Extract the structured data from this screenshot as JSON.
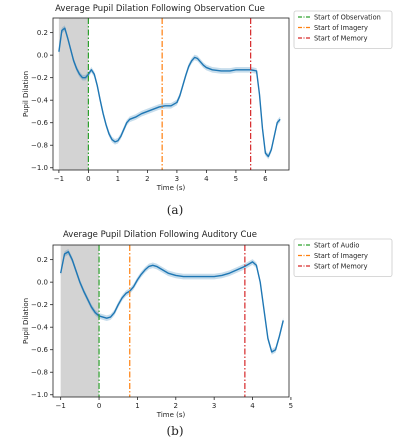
{
  "chart_data": [
    {
      "type": "line",
      "title": "Average Pupil Dilation Following Observation Cue",
      "xlabel": "Time (s)",
      "ylabel": "Pupil Dilation",
      "xlim": [
        -1.2,
        6.8
      ],
      "ylim": [
        -1.02,
        0.33
      ],
      "xticks": [
        -1,
        0,
        1,
        2,
        3,
        4,
        5,
        6
      ],
      "yticks": [
        0.2,
        0.0,
        -0.2,
        -0.4,
        -0.6,
        -0.8,
        -1.0
      ],
      "xtick_labels": [
        "−1",
        "0",
        "1",
        "2",
        "3",
        "4",
        "5",
        "6"
      ],
      "ytick_labels": [
        "0.2",
        "0.0",
        "−0.2",
        "−0.4",
        "−0.6",
        "−0.8",
        "−1.0"
      ],
      "shaded_region": [
        -1.0,
        0.0
      ],
      "grid": false,
      "legend_position": "right",
      "series": [
        {
          "color": "#1f77b4",
          "x": [
            -1.0,
            -0.9,
            -0.8,
            -0.7,
            -0.6,
            -0.5,
            -0.4,
            -0.3,
            -0.2,
            -0.1,
            0.0,
            0.1,
            0.2,
            0.3,
            0.4,
            0.5,
            0.6,
            0.7,
            0.8,
            0.9,
            1.0,
            1.1,
            1.2,
            1.3,
            1.4,
            1.5,
            1.6,
            1.8,
            2.0,
            2.2,
            2.4,
            2.6,
            2.8,
            3.0,
            3.1,
            3.2,
            3.3,
            3.4,
            3.5,
            3.6,
            3.7,
            3.8,
            3.9,
            4.0,
            4.2,
            4.5,
            4.8,
            5.0,
            5.3,
            5.5,
            5.7,
            5.8,
            5.9,
            6.0,
            6.1,
            6.2,
            6.3,
            6.4,
            6.5
          ],
          "y": [
            0.03,
            0.22,
            0.24,
            0.15,
            0.05,
            -0.05,
            -0.12,
            -0.17,
            -0.2,
            -0.2,
            -0.17,
            -0.13,
            -0.17,
            -0.27,
            -0.4,
            -0.52,
            -0.62,
            -0.7,
            -0.75,
            -0.77,
            -0.76,
            -0.72,
            -0.66,
            -0.6,
            -0.57,
            -0.56,
            -0.55,
            -0.52,
            -0.5,
            -0.48,
            -0.46,
            -0.45,
            -0.45,
            -0.42,
            -0.36,
            -0.27,
            -0.18,
            -0.1,
            -0.05,
            -0.02,
            -0.03,
            -0.06,
            -0.09,
            -0.11,
            -0.13,
            -0.14,
            -0.14,
            -0.13,
            -0.13,
            -0.13,
            -0.14,
            -0.35,
            -0.65,
            -0.87,
            -0.9,
            -0.84,
            -0.72,
            -0.6,
            -0.57
          ],
          "band": 0.025
        }
      ],
      "vlines": [
        {
          "label": "Start of Observation",
          "x": 0.0,
          "color": "#2ca02c",
          "dash": "6,2,1.5,2"
        },
        {
          "label": "Start of Imagery",
          "x": 2.5,
          "color": "#ff7f0e",
          "dash": "6,2,1.5,2"
        },
        {
          "label": "Start of Memory",
          "x": 5.5,
          "color": "#d62728",
          "dash": "6,2,1.5,2"
        }
      ],
      "caption": "(a)"
    },
    {
      "type": "line",
      "title": "Average Pupil Dilation Following Auditory Cue",
      "xlabel": "Time (s)",
      "ylabel": "Pupil Dilation",
      "xlim": [
        -1.2,
        4.95
      ],
      "ylim": [
        -1.02,
        0.33
      ],
      "xticks": [
        -1,
        0,
        1,
        2,
        3,
        4,
        5
      ],
      "yticks": [
        0.2,
        0.0,
        -0.2,
        -0.4,
        -0.6,
        -0.8,
        -1.0
      ],
      "xtick_labels": [
        "−1",
        "0",
        "1",
        "2",
        "3",
        "4",
        "5"
      ],
      "ytick_labels": [
        "0.2",
        "0.0",
        "−0.2",
        "−0.4",
        "−0.6",
        "−0.8",
        "−1.0"
      ],
      "shaded_region": [
        -1.0,
        0.0
      ],
      "grid": false,
      "legend_position": "right",
      "series": [
        {
          "color": "#1f77b4",
          "x": [
            -1.0,
            -0.9,
            -0.8,
            -0.7,
            -0.6,
            -0.5,
            -0.4,
            -0.3,
            -0.2,
            -0.1,
            0.0,
            0.1,
            0.2,
            0.3,
            0.4,
            0.5,
            0.6,
            0.7,
            0.8,
            0.9,
            1.0,
            1.1,
            1.2,
            1.3,
            1.4,
            1.5,
            1.6,
            1.7,
            1.8,
            2.0,
            2.2,
            2.5,
            2.8,
            3.0,
            3.2,
            3.4,
            3.6,
            3.8,
            3.9,
            4.0,
            4.1,
            4.2,
            4.3,
            4.4,
            4.5,
            4.6,
            4.7,
            4.8
          ],
          "y": [
            0.08,
            0.25,
            0.27,
            0.2,
            0.1,
            0.0,
            -0.08,
            -0.15,
            -0.22,
            -0.27,
            -0.3,
            -0.31,
            -0.32,
            -0.31,
            -0.27,
            -0.2,
            -0.14,
            -0.1,
            -0.08,
            -0.04,
            0.02,
            0.07,
            0.11,
            0.14,
            0.15,
            0.14,
            0.12,
            0.1,
            0.08,
            0.06,
            0.05,
            0.05,
            0.05,
            0.05,
            0.06,
            0.08,
            0.11,
            0.14,
            0.16,
            0.18,
            0.15,
            0.0,
            -0.25,
            -0.5,
            -0.62,
            -0.6,
            -0.48,
            -0.34
          ],
          "band": 0.025
        }
      ],
      "vlines": [
        {
          "label": "Start of Audio",
          "x": 0.0,
          "color": "#2ca02c",
          "dash": "6,2,1.5,2"
        },
        {
          "label": "Start of Imagery",
          "x": 0.8,
          "color": "#ff7f0e",
          "dash": "6,2,1.5,2"
        },
        {
          "label": "Start of Memory",
          "x": 3.8,
          "color": "#d62728",
          "dash": "6,2,1.5,2"
        }
      ],
      "caption": "(b)"
    }
  ]
}
